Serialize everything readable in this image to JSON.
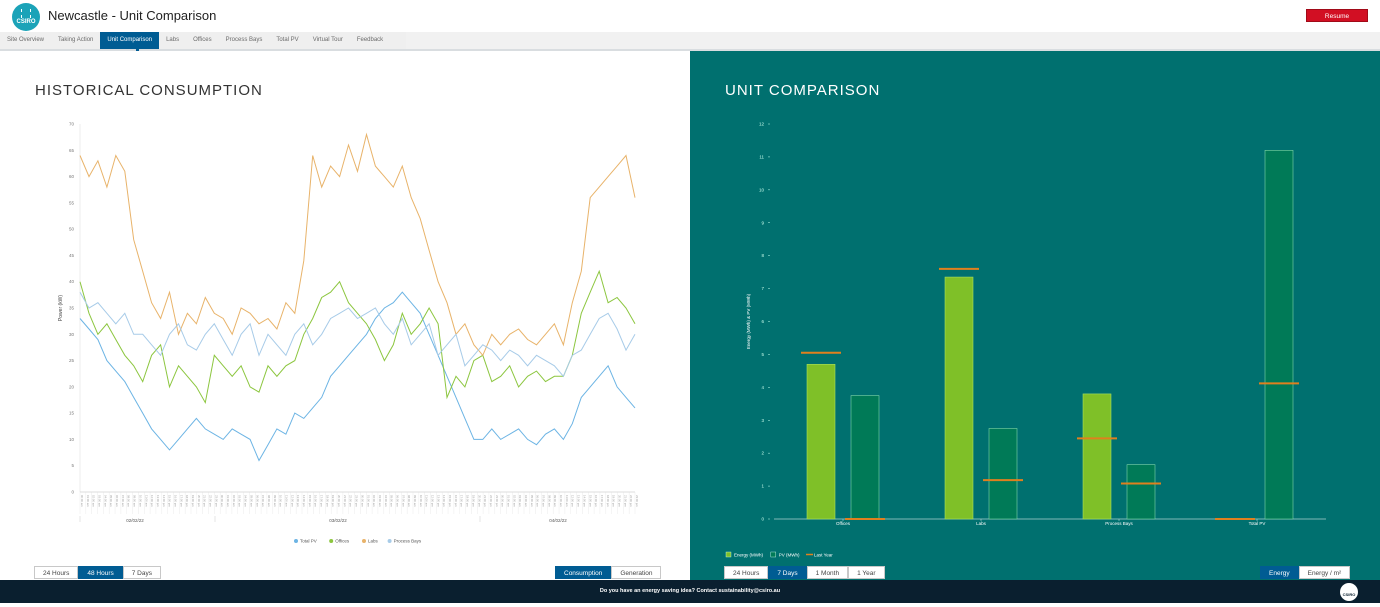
{
  "header": {
    "logo_text": "CSIRO",
    "title": "Newcastle - Unit Comparison",
    "resume_label": "Resume"
  },
  "tabs": [
    {
      "label": "Site Overview",
      "active": false
    },
    {
      "label": "Taking Action",
      "active": false
    },
    {
      "label": "Unit Comparison",
      "active": true
    },
    {
      "label": "Labs",
      "active": false
    },
    {
      "label": "Offices",
      "active": false
    },
    {
      "label": "Process Bays",
      "active": false
    },
    {
      "label": "Total PV",
      "active": false
    },
    {
      "label": "Virtual Tour",
      "active": false
    },
    {
      "label": "Feedback",
      "active": false
    }
  ],
  "left": {
    "title": "HISTORICAL CONSUMPTION",
    "range_buttons": [
      {
        "label": "24 Hours",
        "active": false
      },
      {
        "label": "48 Hours",
        "active": true
      },
      {
        "label": "7 Days",
        "active": false
      }
    ],
    "mode_buttons": [
      {
        "label": "Consumption",
        "active": true
      },
      {
        "label": "Generation",
        "active": false
      }
    ]
  },
  "right": {
    "title": "UNIT COMPARISON",
    "range_buttons": [
      {
        "label": "24 Hours",
        "active": false
      },
      {
        "label": "7 Days",
        "active": true
      },
      {
        "label": "1 Month",
        "active": false
      },
      {
        "label": "1 Year",
        "active": false
      }
    ],
    "unit_buttons": [
      {
        "label": "Energy",
        "active": true
      },
      {
        "label": "Energy / m²",
        "active": false
      }
    ]
  },
  "footer": {
    "text": "Do you have an energy saving idea? Contact sustainability@csiro.au",
    "logo_text": "CSIRO"
  },
  "chart_data": [
    {
      "type": "line",
      "ylabel": "Power (kW)",
      "ylim": [
        0,
        70
      ],
      "yticks": [
        0,
        5,
        10,
        15,
        20,
        25,
        30,
        35,
        40,
        45,
        50,
        55,
        60,
        65,
        70
      ],
      "date_labels": [
        "02/02/22",
        "03/02/22",
        "04/02/22"
      ],
      "legend_position": "bottom",
      "grid": false,
      "series": [
        {
          "name": "Total PV",
          "color": "#6cb4e4",
          "values": [
            33,
            31,
            29,
            25,
            23,
            21,
            18,
            15,
            12,
            10,
            8,
            10,
            12,
            14,
            12,
            11,
            10,
            12,
            11,
            10,
            6,
            9,
            12,
            11,
            15,
            14,
            16,
            18,
            22,
            24,
            26,
            28,
            30,
            33,
            35,
            36,
            38,
            36,
            34,
            30,
            26,
            22,
            18,
            14,
            10,
            10,
            12,
            10,
            11,
            12,
            10,
            9,
            11,
            12,
            10,
            13,
            18,
            20,
            22,
            24,
            20,
            18,
            16
          ]
        },
        {
          "name": "Offices",
          "color": "#8cc63f",
          "values": [
            40,
            34,
            30,
            32,
            29,
            26,
            24,
            21,
            26,
            28,
            20,
            24,
            22,
            20,
            17,
            26,
            24,
            22,
            24,
            20,
            19,
            24,
            22,
            24,
            25,
            30,
            33,
            37,
            38,
            40,
            36,
            34,
            32,
            29,
            25,
            28,
            34,
            30,
            32,
            35,
            32,
            18,
            22,
            20,
            25,
            26,
            21,
            22,
            24,
            20,
            22,
            23,
            21,
            22,
            22,
            26,
            34,
            38,
            42,
            36,
            37,
            35,
            32
          ]
        },
        {
          "name": "Labs",
          "color": "#e8b36a",
          "values": [
            64,
            60,
            63,
            58,
            64,
            61,
            48,
            42,
            36,
            33,
            38,
            30,
            34,
            32,
            37,
            34,
            33,
            30,
            35,
            34,
            32,
            33,
            31,
            36,
            34,
            44,
            64,
            58,
            62,
            60,
            66,
            61,
            68,
            62,
            60,
            58,
            62,
            56,
            52,
            46,
            40,
            36,
            30,
            32,
            28,
            26,
            30,
            28,
            30,
            31,
            29,
            28,
            30,
            32,
            28,
            36,
            42,
            56,
            58,
            60,
            62,
            64,
            56
          ]
        },
        {
          "name": "Process Bays",
          "color": "#a7cbe8",
          "values": [
            38,
            35,
            36,
            34,
            32,
            34,
            30,
            30,
            28,
            26,
            30,
            32,
            28,
            27,
            30,
            32,
            29,
            26,
            30,
            32,
            26,
            30,
            28,
            26,
            30,
            32,
            28,
            30,
            33,
            34,
            35,
            33,
            34,
            35,
            32,
            30,
            33,
            28,
            30,
            32,
            26,
            28,
            30,
            24,
            26,
            28,
            27,
            25,
            27,
            26,
            24,
            26,
            25,
            24,
            22,
            26,
            27,
            30,
            33,
            34,
            31,
            27,
            30
          ]
        }
      ]
    },
    {
      "type": "bar",
      "ylabel": "Energy (MWh) & PV (MWh)",
      "ylim": [
        0,
        12
      ],
      "yticks": [
        0,
        1,
        2,
        3,
        4,
        5,
        6,
        7,
        8,
        9,
        10,
        11,
        12
      ],
      "categories": [
        "Offices",
        "Labs",
        "Process Bays",
        "Total PV"
      ],
      "series": [
        {
          "name": "Energy (MWh)",
          "color": "#7fc028",
          "values": [
            4.7,
            7.35,
            3.8,
            null
          ]
        },
        {
          "name": "PV (MWh)",
          "color": "#007a57",
          "values": [
            3.75,
            2.75,
            1.65,
            11.2
          ]
        },
        {
          "name": "Last Year",
          "color": "#e0801e",
          "energy_values": [
            5.05,
            7.6,
            2.45,
            0.0
          ],
          "pv_values": [
            0.0,
            1.18,
            1.08,
            4.12
          ]
        }
      ],
      "legend_position": "bottom-left",
      "grid": false
    }
  ]
}
